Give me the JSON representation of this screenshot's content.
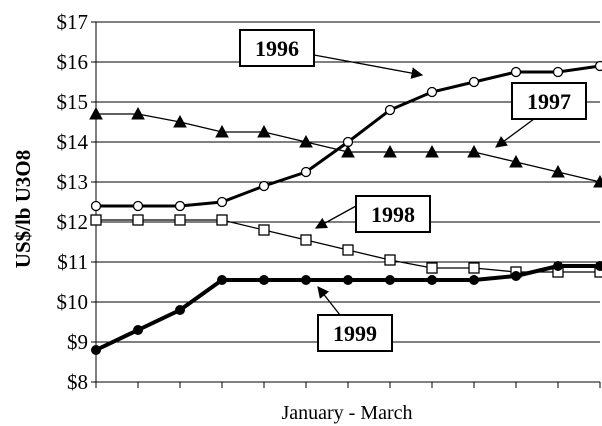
{
  "chart_data": {
    "type": "line",
    "title": "",
    "xlabel": "January - March",
    "ylabel": "US$/lb U3O8",
    "ylim": [
      8,
      17
    ],
    "y_ticks": [
      "$8",
      "$9",
      "$10",
      "$11",
      "$12",
      "$13",
      "$14",
      "$15",
      "$16",
      "$17"
    ],
    "y_tick_values": [
      8,
      9,
      10,
      11,
      12,
      13,
      14,
      15,
      16,
      17
    ],
    "grid": "horizontal",
    "x": [
      1,
      2,
      3,
      4,
      5,
      6,
      7,
      8,
      9,
      10,
      11,
      12,
      13
    ],
    "series": [
      {
        "name": "1996",
        "marker": "open-circle",
        "color": "#000000",
        "values": [
          12.4,
          12.4,
          12.4,
          12.5,
          12.9,
          13.25,
          14.0,
          14.8,
          15.25,
          15.5,
          15.75,
          15.75,
          15.9
        ]
      },
      {
        "name": "1997",
        "marker": "filled-triangle",
        "color": "#000000",
        "values": [
          14.7,
          14.7,
          14.5,
          14.25,
          14.25,
          14.0,
          13.75,
          13.75,
          13.75,
          13.75,
          13.5,
          13.25,
          13.0
        ]
      },
      {
        "name": "1998",
        "marker": "open-square",
        "color": "#000000",
        "values": [
          12.05,
          12.05,
          12.05,
          12.05,
          11.8,
          11.55,
          11.3,
          11.05,
          10.85,
          10.85,
          10.75,
          10.75,
          10.75
        ]
      },
      {
        "name": "1999",
        "marker": "filled-circle",
        "color": "#000000",
        "values": [
          8.8,
          9.3,
          9.8,
          10.55,
          10.55,
          10.55,
          10.55,
          10.55,
          10.55,
          10.55,
          10.65,
          10.9,
          10.9
        ]
      }
    ],
    "callouts": [
      {
        "series": "1996",
        "label": "1996"
      },
      {
        "series": "1997",
        "label": "1997"
      },
      {
        "series": "1998",
        "label": "1998"
      },
      {
        "series": "1999",
        "label": "1999"
      }
    ]
  }
}
